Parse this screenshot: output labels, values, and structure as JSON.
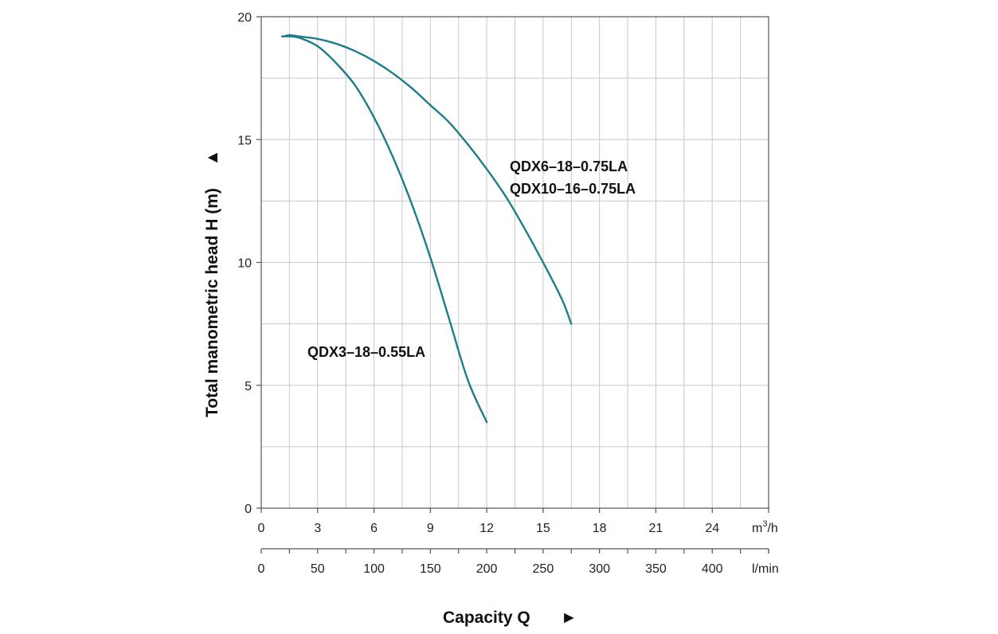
{
  "chart_data": {
    "type": "line",
    "title": "",
    "ylabel": "Total manometric head H (m)",
    "ylabel_arrow": "▲",
    "xlabel": "Capacity Q",
    "xlabel_arrow": "►",
    "ylim": [
      0,
      20
    ],
    "yticks": [
      "0",
      "5",
      "10",
      "15",
      "20"
    ],
    "xlim": [
      0,
      27
    ],
    "x_unit_primary": "m³/h",
    "x_unit_primary_base": "m",
    "x_unit_primary_sup": "3",
    "x_unit_primary_tail": "/h",
    "xticks_primary": [
      "0",
      "3",
      "6",
      "9",
      "12",
      "15",
      "18",
      "21",
      "24"
    ],
    "x_unit_secondary": "l/min",
    "xticks_secondary": [
      "0",
      "50",
      "100",
      "150",
      "200",
      "250",
      "300",
      "350",
      "400"
    ],
    "grid": true,
    "line_color": "#1e7d8a",
    "series": [
      {
        "name": "QDX3-18-0.55LA",
        "label_lines": [
          "QDX3–18–0.55LA"
        ],
        "x": [
          1.1,
          1.5,
          2.0,
          3.0,
          4.0,
          5.0,
          6.0,
          7.0,
          8.0,
          9.0,
          10.0,
          11.0,
          12.0
        ],
        "y": [
          19.2,
          19.2,
          19.15,
          18.8,
          18.1,
          17.2,
          15.9,
          14.3,
          12.4,
          10.2,
          7.7,
          5.2,
          3.5
        ]
      },
      {
        "name": "QDX6-18-0.75LA / QDX10-16-0.75LA",
        "label_lines": [
          "QDX6–18–0.75LA",
          "QDX10–16–0.75LA"
        ],
        "x": [
          1.2,
          1.5,
          2.0,
          3.0,
          4.0,
          5.0,
          6.0,
          7.0,
          8.0,
          9.0,
          10.0,
          11.0,
          12.0,
          13.0,
          14.0,
          15.0,
          16.0,
          16.5
        ],
        "y": [
          19.2,
          19.25,
          19.2,
          19.1,
          18.9,
          18.6,
          18.2,
          17.7,
          17.1,
          16.4,
          15.7,
          14.8,
          13.8,
          12.7,
          11.4,
          10.0,
          8.5,
          7.5
        ]
      }
    ]
  }
}
